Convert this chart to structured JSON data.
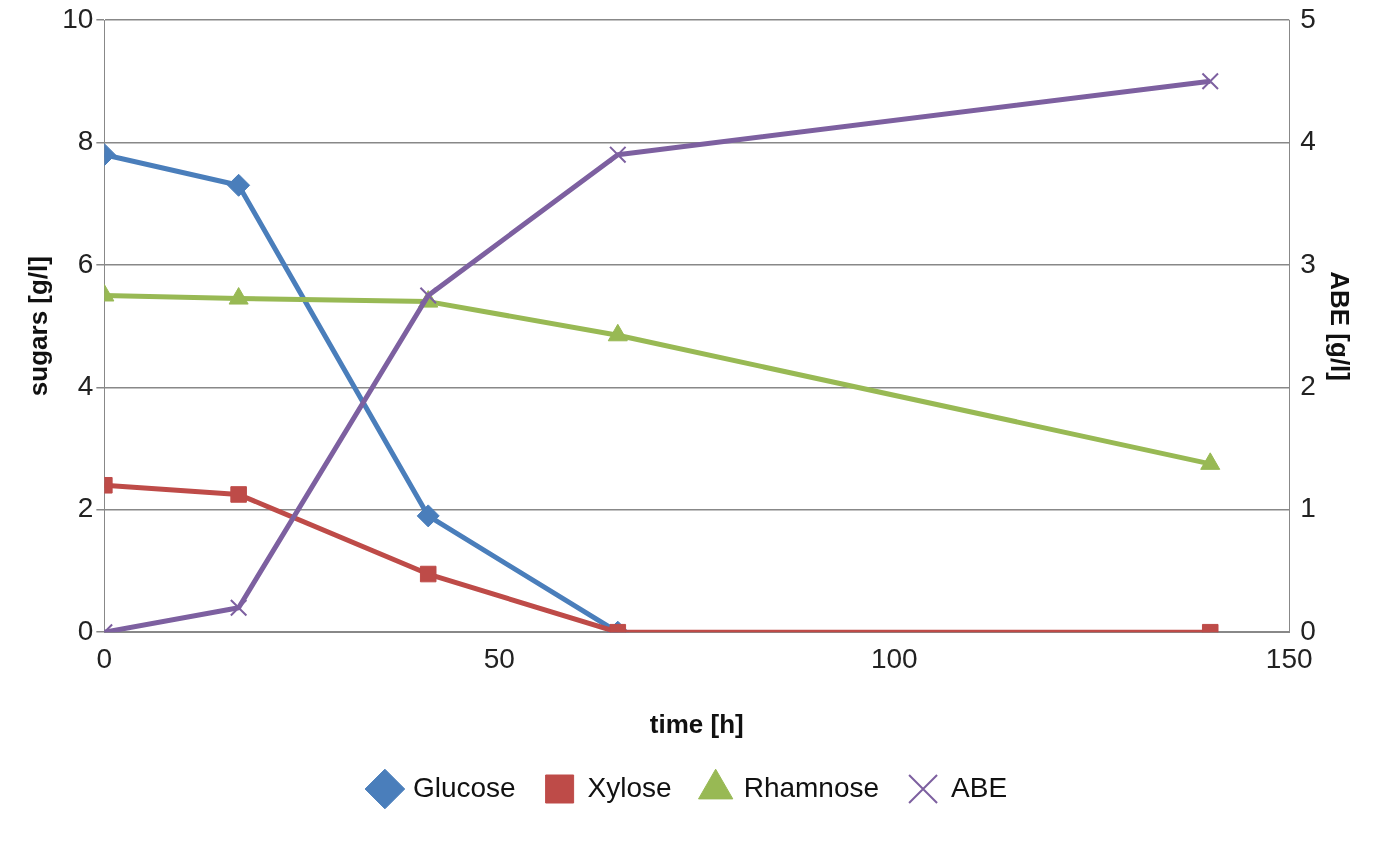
{
  "chart_data": {
    "type": "line",
    "xlabel": "time [h]",
    "ylabel": "sugars [g/l]",
    "y2label": "ABE [g/l]",
    "x": [
      0,
      17,
      41,
      65,
      140
    ],
    "series": [
      {
        "name": "Glucose",
        "color": "#4a7ebb",
        "marker": "diamond",
        "values": [
          7.8,
          7.3,
          1.9,
          0,
          null
        ]
      },
      {
        "name": "Xylose",
        "color": "#be4b48",
        "marker": "square",
        "values": [
          2.4,
          2.25,
          0.95,
          0,
          0
        ]
      },
      {
        "name": "Rhamnose",
        "color": "#98b954",
        "marker": "triangle",
        "values": [
          5.5,
          5.45,
          5.4,
          4.85,
          2.75
        ]
      },
      {
        "name": "ABE",
        "color": "#7d60a0",
        "marker": "cross",
        "axis": "y2",
        "values": [
          0,
          0.2,
          2.75,
          3.9,
          4.5
        ]
      }
    ],
    "xlim": [
      0,
      150
    ],
    "xticks": [
      0,
      50,
      100,
      150
    ],
    "ylim": [
      0,
      10
    ],
    "yticks": [
      0,
      2,
      4,
      6,
      8,
      10
    ],
    "y2lim": [
      0,
      5
    ],
    "y2ticks": [
      0,
      1,
      2,
      3,
      4,
      5
    ],
    "grid": "y",
    "legend": "bottom"
  }
}
